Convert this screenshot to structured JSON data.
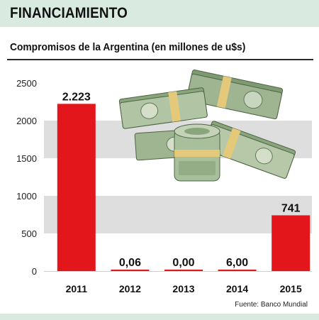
{
  "header": {
    "title": "FINANCIAMIENTO"
  },
  "source": "Fuente: Banco Mundial",
  "image": {
    "icon": "money-stack-icon",
    "description_label": ""
  },
  "colors": {
    "bar": "#e3171b",
    "band": "#d9eae1",
    "stripe": "#dedede"
  },
  "chart_data": {
    "type": "bar",
    "title": "Compromisos de la Argentina (en millones de u$s)",
    "categories": [
      "2011",
      "2012",
      "2013",
      "2014",
      "2015"
    ],
    "values": [
      2223,
      0.06,
      0,
      6,
      741
    ],
    "value_labels": [
      "2.223",
      "0,06",
      "0,00",
      "6,00",
      "741"
    ],
    "ylim": [
      0,
      2500
    ],
    "yticks": [
      0,
      500,
      1000,
      1500,
      2000,
      2500
    ],
    "ytick_labels": [
      "0",
      "500",
      "1000",
      "1500",
      "2000",
      "2500"
    ],
    "xlabel": "",
    "ylabel": "",
    "grid": "alternating horizontal bands",
    "legend": "none"
  }
}
